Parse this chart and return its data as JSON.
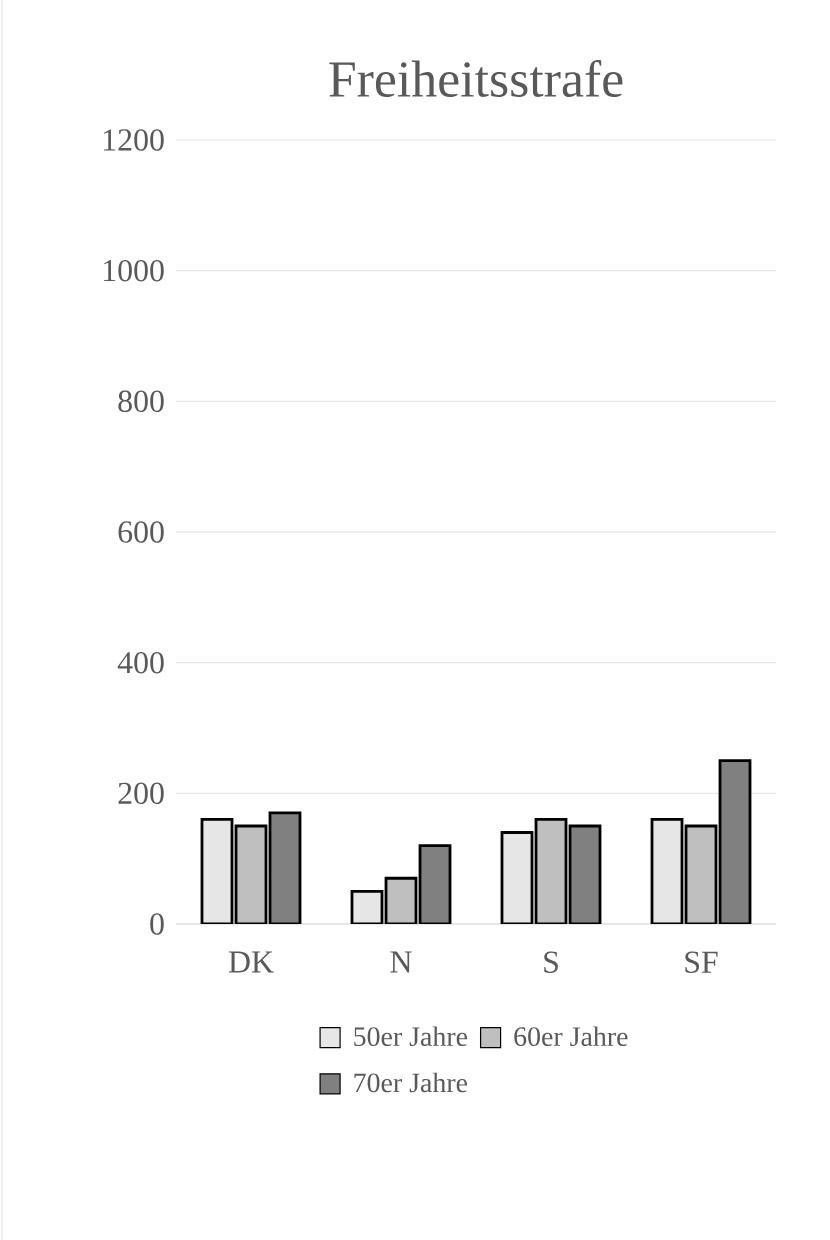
{
  "chart_data": {
    "type": "bar",
    "title": "Freiheitsstrafe",
    "categories": [
      "DK",
      "N",
      "S",
      "SF"
    ],
    "series": [
      {
        "name": "50er Jahre",
        "color": "#e6e6e6",
        "values": [
          160,
          50,
          140,
          160
        ]
      },
      {
        "name": "60er Jahre",
        "color": "#bfbfbf",
        "values": [
          150,
          70,
          160,
          150
        ]
      },
      {
        "name": "70er Jahre",
        "color": "#808080",
        "values": [
          170,
          120,
          150,
          250
        ]
      }
    ],
    "ylim": [
      0,
      1200
    ],
    "yticks": [
      0,
      200,
      400,
      600,
      800,
      1000,
      1200
    ],
    "grid": "y",
    "legend": "bottom"
  }
}
